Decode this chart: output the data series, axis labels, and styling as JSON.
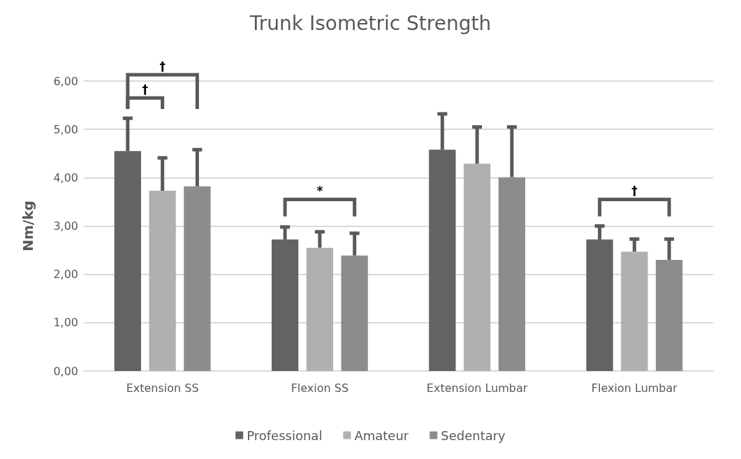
{
  "chart_data": {
    "type": "bar",
    "title": "Trunk Isometric Strength",
    "ylabel": "Nm/kg",
    "categories": [
      "Extension SS",
      "Flexion SS",
      "Extension Lumbar",
      "Flexion Lumbar"
    ],
    "series": [
      {
        "name": "Professional",
        "color": "#636363",
        "values": [
          4.55,
          2.72,
          4.58,
          2.72
        ],
        "errors": [
          [
            4.55,
            5.23
          ],
          [
            2.72,
            2.98
          ],
          [
            4.58,
            5.32
          ],
          [
            2.72,
            3.0
          ]
        ]
      },
      {
        "name": "Amateur",
        "color": "#b0b0b0",
        "values": [
          3.73,
          2.55,
          4.29,
          2.47
        ],
        "errors": [
          [
            3.73,
            4.41
          ],
          [
            2.55,
            2.88
          ],
          [
            4.29,
            5.05
          ],
          [
            2.47,
            2.73
          ]
        ]
      },
      {
        "name": "Sedentary",
        "color": "#8c8c8c",
        "values": [
          3.82,
          2.39,
          4.01,
          2.3
        ],
        "errors": [
          [
            3.82,
            4.58
          ],
          [
            2.39,
            2.85
          ],
          [
            4.01,
            5.05
          ],
          [
            2.3,
            2.73
          ]
        ]
      }
    ],
    "ylim": [
      0,
      6
    ],
    "yticks": [
      {
        "value": 0,
        "label": "0,00"
      },
      {
        "value": 1,
        "label": "1,00"
      },
      {
        "value": 2,
        "label": "2,00"
      },
      {
        "value": 3,
        "label": "3,00"
      },
      {
        "value": 4,
        "label": "4,00"
      },
      {
        "value": 5,
        "label": "5,00"
      },
      {
        "value": 6,
        "label": "6,00"
      }
    ],
    "annotations": [
      "†",
      "†",
      "*",
      "†"
    ],
    "grid": "y",
    "legend": "bottom"
  }
}
